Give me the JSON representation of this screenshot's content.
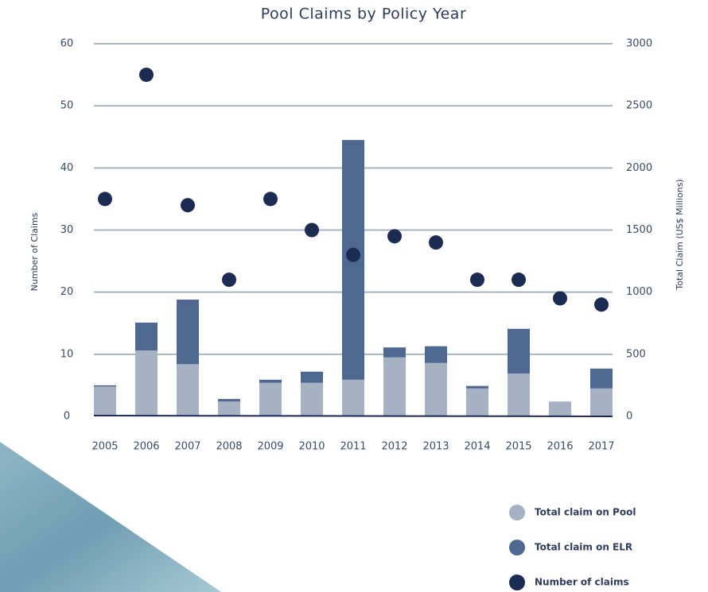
{
  "chart_data": {
    "type": "bar",
    "title": "Pool Claims by Policy Year",
    "y_label": "Number of Claims",
    "y2_label": "Total Claim (US$ Millions)",
    "categories": [
      "2005",
      "2006",
      "2007",
      "2008",
      "2009",
      "2010",
      "2011",
      "2012",
      "2013",
      "2014",
      "2015",
      "2016",
      "2017"
    ],
    "stacked": true,
    "grid": true,
    "legend": "bottom-right",
    "ylim": [
      0,
      60
    ],
    "yticks": [
      0,
      10,
      20,
      30,
      40,
      50,
      60
    ],
    "y2lim": [
      0,
      3000
    ],
    "y2ticks": [
      0,
      500,
      1000,
      1500,
      2000,
      2500,
      3000
    ],
    "series": [
      {
        "name": "Total claim on Pool",
        "type": "bar",
        "axis": "y2",
        "color": "#a6b1c4",
        "values": [
          240,
          530,
          420,
          120,
          270,
          270,
          295,
          475,
          430,
          225,
          345,
          120,
          225
        ]
      },
      {
        "name": "Total claim on ELR",
        "type": "bar",
        "axis": "y2",
        "color": "#4f6891",
        "values": [
          10,
          225,
          520,
          20,
          25,
          90,
          1930,
          80,
          135,
          20,
          360,
          0,
          160
        ]
      },
      {
        "name": "Number of claims",
        "type": "line",
        "axis": "y",
        "color": "#1c2b52",
        "values": [
          35,
          55,
          34,
          22,
          35,
          30,
          26,
          29,
          28,
          22,
          22,
          19,
          18
        ]
      }
    ]
  }
}
